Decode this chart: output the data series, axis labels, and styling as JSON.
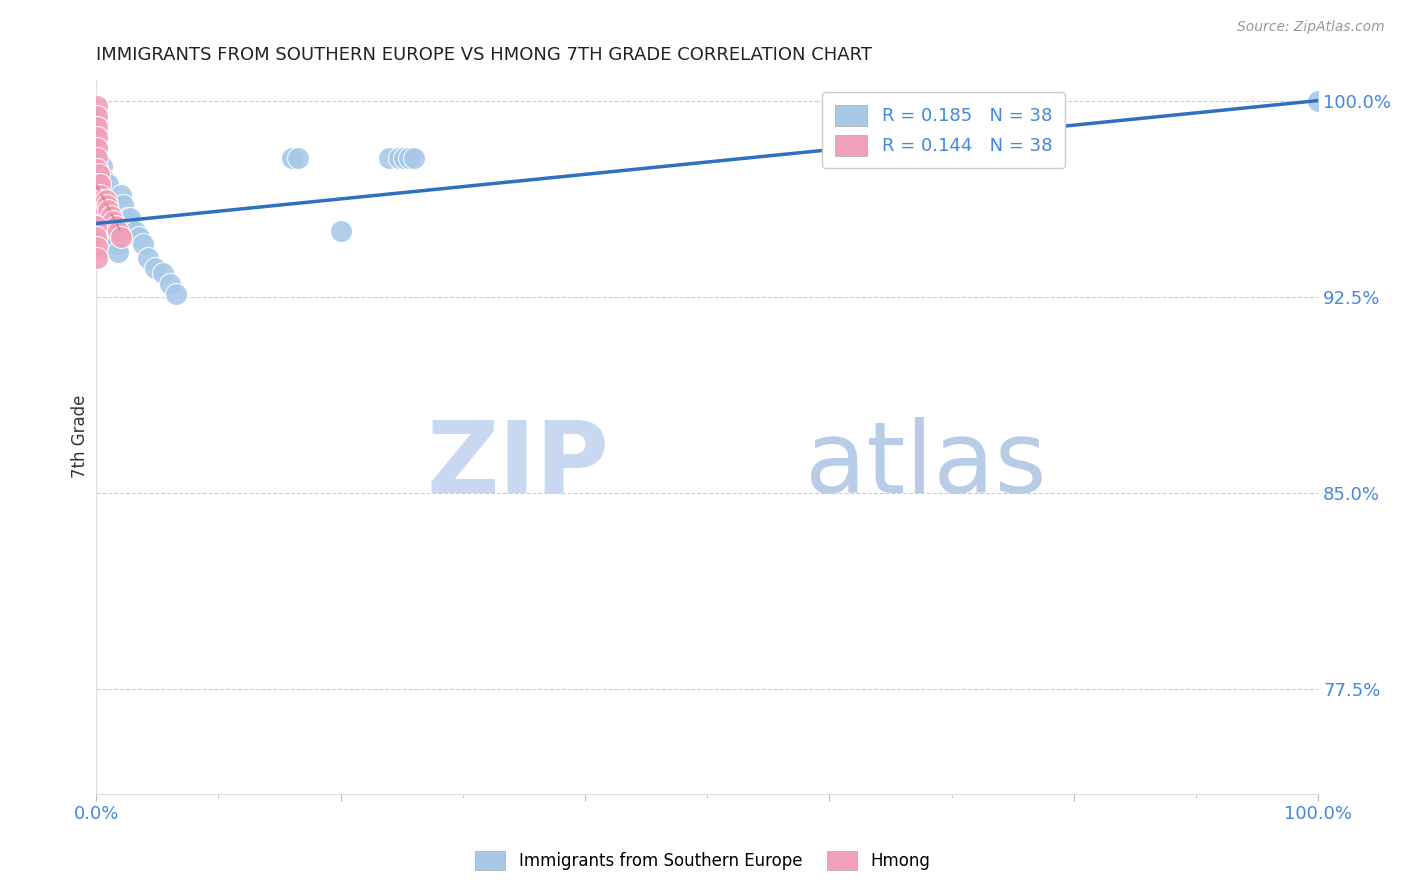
{
  "title": "IMMIGRANTS FROM SOUTHERN EUROPE VS HMONG 7TH GRADE CORRELATION CHART",
  "source": "Source: ZipAtlas.com",
  "ylabel": "7th Grade",
  "xlim": [
    0.0,
    1.0
  ],
  "ylim": [
    0.735,
    1.008
  ],
  "y_ticks": [
    0.775,
    0.85,
    0.925,
    1.0
  ],
  "y_tick_labels": [
    "77.5%",
    "85.0%",
    "92.5%",
    "100.0%"
  ],
  "blue_scatter_x": [
    0.003,
    0.004,
    0.005,
    0.006,
    0.006,
    0.007,
    0.008,
    0.009,
    0.01,
    0.011,
    0.012,
    0.013,
    0.014,
    0.015,
    0.016,
    0.017,
    0.018,
    0.02,
    0.022,
    0.025,
    0.028,
    0.032,
    0.035,
    0.038,
    0.042,
    0.048,
    0.055,
    0.06,
    0.065,
    0.16,
    0.165,
    0.24,
    0.248,
    0.252,
    0.256,
    0.26,
    0.2,
    1.0
  ],
  "blue_scatter_y": [
    0.972,
    0.965,
    0.975,
    0.97,
    0.962,
    0.958,
    0.966,
    0.96,
    0.968,
    0.958,
    0.954,
    0.952,
    0.948,
    0.956,
    0.95,
    0.945,
    0.942,
    0.964,
    0.96,
    0.955,
    0.955,
    0.95,
    0.948,
    0.945,
    0.94,
    0.936,
    0.934,
    0.93,
    0.926,
    0.978,
    0.978,
    0.978,
    0.978,
    0.978,
    0.978,
    0.978,
    0.95,
    1.0
  ],
  "pink_scatter_x": [
    0.001,
    0.001,
    0.001,
    0.001,
    0.001,
    0.001,
    0.001,
    0.001,
    0.002,
    0.002,
    0.002,
    0.002,
    0.002,
    0.003,
    0.003,
    0.003,
    0.003,
    0.004,
    0.004,
    0.004,
    0.005,
    0.005,
    0.006,
    0.006,
    0.007,
    0.007,
    0.008,
    0.009,
    0.01,
    0.012,
    0.014,
    0.016,
    0.018,
    0.02,
    0.0,
    0.0,
    0.001,
    0.001
  ],
  "pink_scatter_y": [
    0.998,
    0.994,
    0.99,
    0.986,
    0.982,
    0.978,
    0.974,
    0.97,
    0.972,
    0.968,
    0.964,
    0.96,
    0.956,
    0.968,
    0.964,
    0.96,
    0.956,
    0.96,
    0.956,
    0.952,
    0.962,
    0.958,
    0.96,
    0.956,
    0.958,
    0.954,
    0.962,
    0.96,
    0.958,
    0.956,
    0.954,
    0.952,
    0.95,
    0.948,
    0.952,
    0.948,
    0.944,
    0.94
  ],
  "blue_line_x": [
    0.0,
    1.0
  ],
  "blue_line_y": [
    0.953,
    1.0
  ],
  "pink_line_x": [
    0.0,
    0.02
  ],
  "pink_line_y": [
    0.968,
    0.95
  ],
  "watermark_zip": "ZIP",
  "watermark_atlas": "atlas",
  "scatter_blue_color": "#a8c8e8",
  "scatter_pink_color": "#f0a0b8",
  "line_blue_color": "#3070c0",
  "line_pink_color": "#d06878",
  "grid_color": "#cccccc",
  "title_color": "#222222",
  "tick_label_color": "#4488dd",
  "watermark_zip_color": "#c8d8f0",
  "watermark_atlas_color": "#b8cce8"
}
